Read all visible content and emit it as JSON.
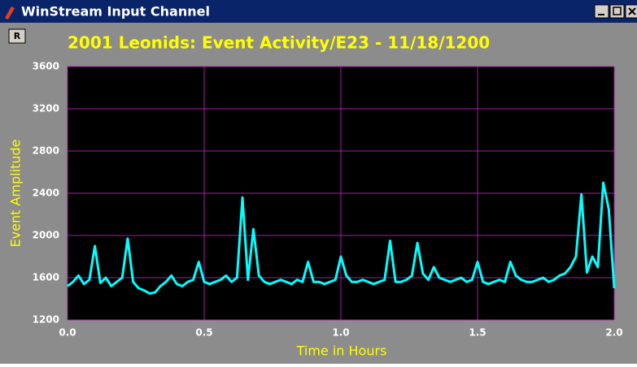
{
  "window": {
    "title": "WinStream Input Channel"
  },
  "print_button": "R",
  "chart_data": {
    "type": "line",
    "title": "2001 Leonids: Event Activity/E23 - 11/18/1200",
    "x_label": "Time in Hours",
    "y_label": "Event Amplitude",
    "x": [
      0,
      0.02,
      0.04,
      0.06,
      0.08,
      0.1,
      0.12,
      0.14,
      0.16,
      0.18,
      0.2,
      0.22,
      0.24,
      0.26,
      0.28,
      0.3,
      0.32,
      0.34,
      0.36,
      0.38,
      0.4,
      0.42,
      0.44,
      0.46,
      0.48,
      0.5,
      0.52,
      0.54,
      0.56,
      0.58,
      0.6,
      0.62,
      0.64,
      0.66,
      0.68,
      0.7,
      0.72,
      0.74,
      0.76,
      0.78,
      0.8,
      0.82,
      0.84,
      0.86,
      0.88,
      0.9,
      0.92,
      0.94,
      0.96,
      0.98,
      1,
      1.02,
      1.04,
      1.06,
      1.08,
      1.1,
      1.12,
      1.14,
      1.16,
      1.18,
      1.2,
      1.22,
      1.24,
      1.26,
      1.28,
      1.3,
      1.32,
      1.34,
      1.36,
      1.38,
      1.4,
      1.42,
      1.44,
      1.46,
      1.48,
      1.5,
      1.52,
      1.54,
      1.56,
      1.58,
      1.6,
      1.62,
      1.64,
      1.66,
      1.68,
      1.7,
      1.72,
      1.74,
      1.76,
      1.78,
      1.8,
      1.82,
      1.84,
      1.86,
      1.88,
      1.9,
      1.92,
      1.94,
      1.96,
      1.98,
      2
    ],
    "series": [
      {
        "name": "E23",
        "color": "#00ffff",
        "values": [
          1520,
          1560,
          1620,
          1540,
          1580,
          1900,
          1550,
          1600,
          1520,
          1560,
          1600,
          1970,
          1560,
          1500,
          1480,
          1450,
          1460,
          1520,
          1560,
          1620,
          1540,
          1520,
          1560,
          1580,
          1750,
          1560,
          1540,
          1560,
          1580,
          1620,
          1560,
          1600,
          2360,
          1580,
          2060,
          1620,
          1560,
          1540,
          1560,
          1580,
          1560,
          1540,
          1580,
          1560,
          1750,
          1560,
          1560,
          1540,
          1560,
          1580,
          1800,
          1620,
          1560,
          1560,
          1580,
          1560,
          1540,
          1560,
          1580,
          1950,
          1560,
          1560,
          1580,
          1620,
          1930,
          1640,
          1580,
          1700,
          1600,
          1580,
          1560,
          1580,
          1600,
          1560,
          1580,
          1750,
          1560,
          1540,
          1560,
          1580,
          1560,
          1750,
          1620,
          1580,
          1560,
          1560,
          1580,
          1600,
          1560,
          1580,
          1620,
          1640,
          1700,
          1800,
          2390,
          1650,
          1800,
          1700,
          2500,
          2250,
          1500
        ]
      }
    ],
    "xlim": [
      0,
      2
    ],
    "ylim": [
      1200,
      3600
    ],
    "xticks": [
      {
        "value": 0,
        "label": "0.0"
      },
      0.5,
      {
        "value": 1,
        "label": "1.0"
      },
      1.5,
      {
        "value": 2,
        "label": "2.0"
      }
    ],
    "yticks": [
      1200,
      1600,
      2000,
      2400,
      2800,
      3200,
      3600
    ],
    "grid": true
  }
}
